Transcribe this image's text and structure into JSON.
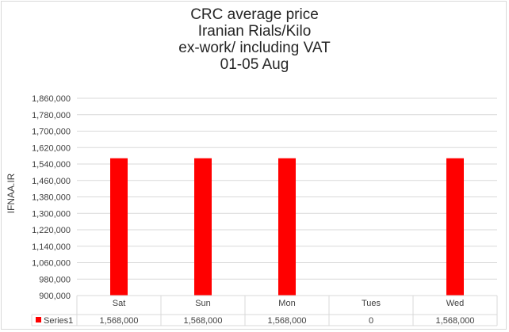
{
  "chart_data": {
    "type": "bar",
    "title_lines": [
      "CRC average price",
      "Iranian Rials/Kilo",
      "ex-work/ including VAT",
      "01-05 Aug"
    ],
    "ylabel": "IFNAA.IR",
    "xlabel": "",
    "categories": [
      "Sat",
      "Sun",
      "Mon",
      "Tues",
      "Wed"
    ],
    "series": [
      {
        "name": "Series1",
        "color": "#ff0000",
        "values": [
          1568000,
          1568000,
          1568000,
          0,
          1568000
        ],
        "value_labels": [
          "1,568,000",
          "1,568,000",
          "1,568,000",
          "0",
          "1,568,000"
        ]
      }
    ],
    "ylim": [
      900000,
      1860000
    ],
    "yticks": [
      900000,
      980000,
      1060000,
      1140000,
      1220000,
      1300000,
      1380000,
      1460000,
      1540000,
      1620000,
      1700000,
      1780000,
      1860000
    ],
    "ytick_labels": [
      "900,000",
      "980,000",
      "1,060,000",
      "1,140,000",
      "1,220,000",
      "1,300,000",
      "1,380,000",
      "1,460,000",
      "1,540,000",
      "1,620,000",
      "1,700,000",
      "1,780,000",
      "1,860,000"
    ],
    "grid": true,
    "legend": "data-table"
  }
}
